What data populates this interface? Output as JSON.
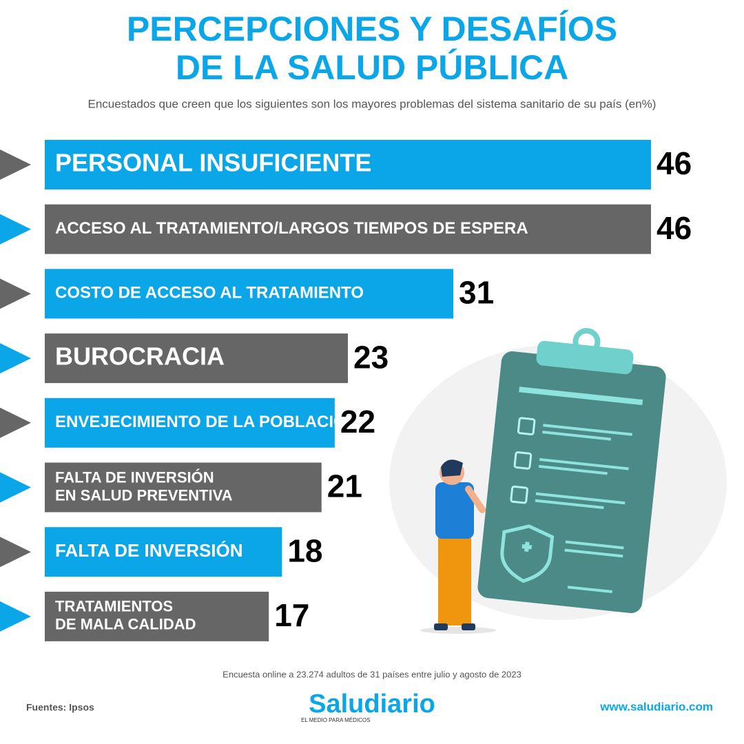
{
  "chart_data": {
    "type": "bar",
    "title": [
      "PERCEPCIONES Y DESAFÍOS",
      "DE LA SALUD PÚBLICA"
    ],
    "subtitle": "Encuestados que creen que los siguientes son los mayores problemas del sistema sanitario de su país (en%)",
    "categories": [
      [
        "PERSONAL INSUFICIENTE"
      ],
      [
        "ACCESO AL TRATAMIENTO/LARGOS TIEMPOS DE ESPERA"
      ],
      [
        "COSTO DE ACCESO AL TRATAMIENTO"
      ],
      [
        "BUROCRACIA"
      ],
      [
        "ENVEJECIMIENTO DE LA POBLACIÓN"
      ],
      [
        "FALTA DE INVERSIÓN",
        "EN SALUD PREVENTIVA"
      ],
      [
        "FALTA DE INVERSIÓN"
      ],
      [
        "TRATAMIENTOS",
        "DE MALA CALIDAD"
      ]
    ],
    "values": [
      46,
      46,
      31,
      23,
      22,
      21,
      18,
      17
    ],
    "colors": [
      "#0aa6e8",
      "#666666"
    ],
    "xlim": [
      0,
      46
    ],
    "note": "Encuesta online a 23.274 adultos de 31 países entre julio y agosto de 2023",
    "source": "Fuentes: Ipsos",
    "brand": "Saludiario",
    "tagline": "EL MEDIO PARA MÉDICOS",
    "url": "www.saludiario.com"
  }
}
